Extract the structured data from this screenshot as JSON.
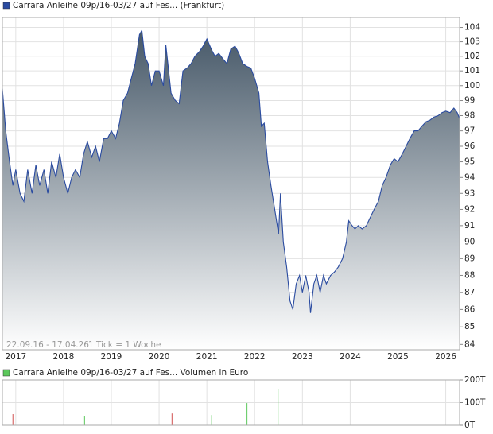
{
  "chart_data": [
    {
      "type": "area",
      "log_y": true,
      "grid": true,
      "legend": "top-left",
      "date_range": "22.09.16 - 17.04.26",
      "tick_note": "1 Tick = 1 Woche",
      "x": [
        2016.72,
        2016.79,
        2016.87,
        2016.94,
        2017.0,
        2017.09,
        2017.17,
        2017.25,
        2017.34,
        2017.42,
        2017.5,
        2017.59,
        2017.67,
        2017.75,
        2017.84,
        2017.92,
        2018.0,
        2018.09,
        2018.17,
        2018.25,
        2018.34,
        2018.42,
        2018.5,
        2018.59,
        2018.67,
        2018.75,
        2018.84,
        2018.92,
        2019.0,
        2019.09,
        2019.17,
        2019.25,
        2019.34,
        2019.42,
        2019.5,
        2019.59,
        2019.64,
        2019.7,
        2019.77,
        2019.84,
        2019.92,
        2020.0,
        2020.09,
        2020.14,
        2020.2,
        2020.25,
        2020.34,
        2020.42,
        2020.5,
        2020.59,
        2020.67,
        2020.75,
        2020.84,
        2020.92,
        2021.0,
        2021.09,
        2021.17,
        2021.25,
        2021.34,
        2021.42,
        2021.5,
        2021.59,
        2021.67,
        2021.75,
        2021.84,
        2021.92,
        2022.0,
        2022.09,
        2022.14,
        2022.2,
        2022.27,
        2022.34,
        2022.42,
        2022.5,
        2022.54,
        2022.6,
        2022.67,
        2022.74,
        2022.8,
        2022.87,
        2022.94,
        2023.0,
        2023.07,
        2023.14,
        2023.17,
        2023.24,
        2023.3,
        2023.37,
        2023.44,
        2023.5,
        2023.59,
        2023.67,
        2023.75,
        2023.84,
        2023.92,
        2023.97,
        2024.04,
        2024.1,
        2024.17,
        2024.25,
        2024.34,
        2024.42,
        2024.5,
        2024.59,
        2024.67,
        2024.75,
        2024.84,
        2024.92,
        2025.0,
        2025.09,
        2025.17,
        2025.25,
        2025.34,
        2025.42,
        2025.5,
        2025.59,
        2025.67,
        2025.75,
        2025.84,
        2025.92,
        2026.0,
        2026.09,
        2026.17,
        2026.24,
        2026.29
      ],
      "series": [
        {
          "name": "Carrara Anleihe 09p/16-03/27 auf Fes... (Frankfurt)",
          "color": "#2a4ba0",
          "values": [
            99.8,
            97,
            95,
            93.5,
            94.5,
            93,
            92.5,
            94.5,
            93,
            94.8,
            93.5,
            94.5,
            93,
            95,
            94,
            95.5,
            94,
            93,
            94,
            94.5,
            94,
            95.5,
            96.3,
            95.3,
            96,
            95,
            96.5,
            96.5,
            97,
            96.5,
            97.5,
            99,
            99.5,
            100.5,
            101.5,
            103.5,
            103.8,
            102,
            101.5,
            100,
            101,
            101,
            100,
            102.8,
            101,
            99.5,
            99,
            98.8,
            101,
            101.2,
            101.5,
            102,
            102.3,
            102.7,
            103.2,
            102.5,
            102,
            102.2,
            101.8,
            101.5,
            102.5,
            102.7,
            102.2,
            101.5,
            101.3,
            101.2,
            100.5,
            99.5,
            97.3,
            97.5,
            95,
            93.5,
            92,
            90.5,
            93,
            90,
            88.5,
            86.5,
            86,
            87.5,
            88,
            87,
            88,
            87,
            85.8,
            87.5,
            88,
            87,
            88,
            87.5,
            88,
            88.2,
            88.5,
            89,
            90,
            91.3,
            91,
            90.8,
            91,
            90.8,
            91,
            91.5,
            92,
            92.5,
            93.5,
            94,
            94.8,
            95.2,
            95,
            95.5,
            96,
            96.5,
            97,
            97,
            97.3,
            97.6,
            97.7,
            97.9,
            98,
            98.2,
            98.3,
            98.2,
            98.5,
            98.2,
            97.8
          ]
        }
      ],
      "xlim": [
        2016.72,
        2026.29
      ],
      "xticks": [
        2017,
        2018,
        2019,
        2020,
        2021,
        2022,
        2023,
        2024,
        2025,
        2026
      ],
      "ylim": [
        83.7,
        104.7
      ],
      "yticks": [
        84,
        85,
        86,
        87,
        88,
        89,
        90,
        91,
        92,
        93,
        94,
        95,
        96,
        97,
        98,
        99,
        100,
        101,
        102,
        103,
        104
      ]
    },
    {
      "type": "bar",
      "grid": true,
      "legend": "top-left",
      "x": [
        2016.94,
        2018.44,
        2020.27,
        2021.1,
        2021.84,
        2022.49
      ],
      "series": [
        {
          "name": "Carrara Anleihe 09p/16-03/27 auf Fes... Volumen in Euro",
          "color": "#5cc85c",
          "colors": [
            "#d05050",
            "#5cc85c",
            "#d05050",
            "#5cc85c",
            "#5cc85c",
            "#5cc85c"
          ],
          "values": [
            49000,
            42000,
            52000,
            45000,
            98000,
            158000
          ]
        }
      ],
      "xlim": [
        2016.72,
        2026.29
      ],
      "xticks": [
        2017,
        2018,
        2019,
        2020,
        2021,
        2022,
        2023,
        2024,
        2025,
        2026
      ],
      "ylim": [
        0,
        200000
      ],
      "yticks": [
        {
          "value": 0,
          "label": "0T"
        },
        {
          "value": 100000,
          "label": "100T"
        },
        {
          "value": 200000,
          "label": "200T"
        }
      ]
    }
  ]
}
